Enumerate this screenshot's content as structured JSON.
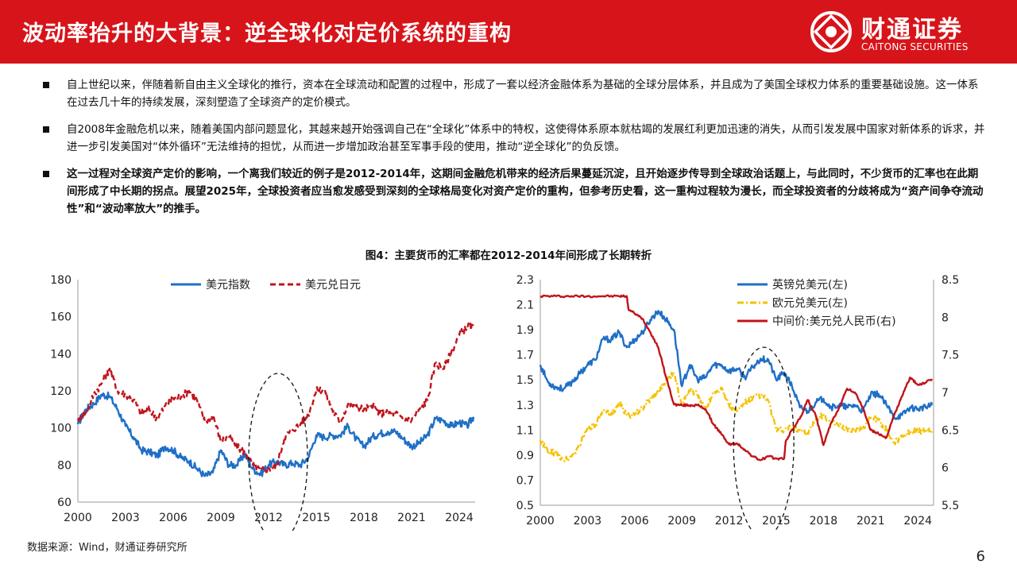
{
  "header": {
    "title": "波动率抬升的大背景：逆全球化对定价系统的重构",
    "logo_cn": "财通证券",
    "logo_en": "CAITONG SECURITIES"
  },
  "bullets": [
    "自上世纪以来，伴随着新自由主义全球化的推行，资本在全球流动和配置的过程中，形成了一套以经济金融体系为基础的全球分层体系，并且成为了美国全球权力体系的重要基础设施。这一体系在过去几十年的持续发展，深刻塑造了全球资产的定价模式。",
    "自2008年金融危机以来，随着美国内部问题显化，其越来越开始强调自己在“全球化”体系中的特权，这使得体系原本就枯竭的发展红利更加迅速的消失，从而引发发展中国家对新体系的诉求，并进一步引发美国对“体外循环”无法维持的担忧，从而进一步增加政治甚至军事手段的使用，推动“逆全球化”的负反馈。",
    "这一过程对全球资产定价的影响，一个离我们较近的例子是2012-2014年，这期间金融危机带来的经济后果蔓延沉淀，且开始逐步传导到全球政治话题上，与此同时，不少货币的汇率也在此期间形成了中长期的拐点。展望2025年，全球投资者应当愈发感受到深刻的全球格局变化对资产定价的重构，但参考历史看，这一重构过程较为漫长，而全球投资者的分歧将成为“资产间争夺流动性”和“波动率放大”的推手。"
  ],
  "figure_title": "图4：主要货币的汇率都在2012-2014年间形成了长期转折",
  "source": "数据来源：Wind，财通证券研究所",
  "page_number": "6",
  "colors": {
    "brand_red": "#d7141a",
    "blue": "#1f6fc6",
    "dark_red": "#c0141b",
    "yellow": "#f5c200"
  },
  "chart_data": [
    {
      "type": "line",
      "xlim": [
        2000,
        2025
      ],
      "x_ticks": [
        "2000",
        "2003",
        "2006",
        "2009",
        "2012",
        "2015",
        "2018",
        "2021",
        "2024"
      ],
      "ylim": [
        60,
        180
      ],
      "y_ticks": [
        "60",
        "80",
        "100",
        "120",
        "140",
        "160",
        "180"
      ],
      "legend_position": "top",
      "annotation": "dashed ellipse around 2011-2014",
      "series": [
        {
          "name": "美元指数",
          "style": "solid",
          "color": "#1f6fc6",
          "x": [
            2000,
            2000.5,
            2001,
            2001.5,
            2002,
            2002.5,
            2003,
            2003.5,
            2004,
            2004.5,
            2005,
            2005.5,
            2006,
            2006.5,
            2007,
            2007.5,
            2008,
            2008.5,
            2009,
            2009.5,
            2010,
            2010.5,
            2011,
            2011.5,
            2012,
            2012.5,
            2013,
            2013.5,
            2014,
            2014.5,
            2015,
            2015.5,
            2016,
            2016.5,
            2017,
            2017.5,
            2018,
            2018.5,
            2019,
            2019.5,
            2020,
            2020.5,
            2021,
            2021.5,
            2022,
            2022.5,
            2023,
            2023.5,
            2024,
            2024.5,
            2024.9
          ],
          "y": [
            102,
            110,
            113,
            118,
            117,
            110,
            101,
            95,
            88,
            87,
            85,
            90,
            88,
            84,
            82,
            78,
            74,
            76,
            88,
            80,
            80,
            86,
            78,
            75,
            80,
            82,
            80,
            81,
            80,
            84,
            96,
            95,
            96,
            96,
            101,
            94,
            90,
            95,
            97,
            98,
            98,
            94,
            90,
            92,
            96,
            105,
            104,
            101,
            103,
            101,
            106
          ]
        },
        {
          "name": "美元兑日元",
          "style": "dashed",
          "color": "#c0141b",
          "x": [
            2000,
            2000.5,
            2001,
            2001.5,
            2002,
            2002.5,
            2003,
            2003.5,
            2004,
            2004.5,
            2005,
            2005.5,
            2006,
            2006.5,
            2007,
            2007.5,
            2008,
            2008.5,
            2009,
            2009.5,
            2010,
            2010.5,
            2011,
            2011.5,
            2012,
            2012.5,
            2013,
            2013.5,
            2014,
            2014.5,
            2015,
            2015.5,
            2016,
            2016.5,
            2017,
            2017.5,
            2018,
            2018.5,
            2019,
            2019.5,
            2020,
            2020.5,
            2021,
            2021.5,
            2022,
            2022.5,
            2023,
            2023.5,
            2024,
            2024.5,
            2024.9
          ],
          "y": [
            105,
            108,
            118,
            124,
            132,
            120,
            118,
            115,
            108,
            110,
            105,
            112,
            116,
            117,
            120,
            115,
            103,
            107,
            93,
            95,
            90,
            87,
            80,
            77,
            78,
            79,
            95,
            99,
            102,
            107,
            120,
            121,
            110,
            103,
            113,
            112,
            110,
            112,
            108,
            108,
            108,
            105,
            104,
            110,
            115,
            135,
            132,
            141,
            150,
            155,
            154
          ]
        }
      ]
    },
    {
      "type": "line",
      "xlim": [
        2000,
        2025
      ],
      "x_ticks": [
        "2000",
        "2003",
        "2006",
        "2009",
        "2012",
        "2015",
        "2018",
        "2021",
        "2024"
      ],
      "ylim_left": [
        0.5,
        2.3
      ],
      "y_ticks_left": [
        "0.5",
        "0.7",
        "0.9",
        "1.1",
        "1.3",
        "1.5",
        "1.7",
        "1.9",
        "2.1",
        "2.3"
      ],
      "ylim_right": [
        5.5,
        8.5
      ],
      "y_ticks_right": [
        "5.5",
        "6",
        "6.5",
        "7",
        "7.5",
        "8",
        "8.5"
      ],
      "legend_position": "top-right",
      "annotation": "dashed ellipse around 2012-2016",
      "series": [
        {
          "name": "英镑兑美元(左)",
          "style": "solid",
          "color": "#1f6fc6",
          "axis": "left",
          "x": [
            2000,
            2000.5,
            2001,
            2001.5,
            2002,
            2002.5,
            2003,
            2003.5,
            2004,
            2004.5,
            2005,
            2005.5,
            2006,
            2006.5,
            2007,
            2007.5,
            2008,
            2008.5,
            2009,
            2009.5,
            2010,
            2010.5,
            2011,
            2011.5,
            2012,
            2012.5,
            2013,
            2013.5,
            2014,
            2014.5,
            2015,
            2015.5,
            2016,
            2016.5,
            2017,
            2017.5,
            2018,
            2018.5,
            2019,
            2019.5,
            2020,
            2020.5,
            2021,
            2021.5,
            2022,
            2022.5,
            2023,
            2023.5,
            2024,
            2024.5,
            2024.9
          ],
          "y": [
            1.62,
            1.48,
            1.44,
            1.43,
            1.48,
            1.55,
            1.62,
            1.66,
            1.83,
            1.82,
            1.88,
            1.76,
            1.82,
            1.88,
            1.98,
            2.05,
            1.98,
            1.9,
            1.45,
            1.62,
            1.5,
            1.52,
            1.62,
            1.62,
            1.57,
            1.59,
            1.52,
            1.6,
            1.67,
            1.66,
            1.5,
            1.56,
            1.45,
            1.28,
            1.25,
            1.32,
            1.35,
            1.28,
            1.3,
            1.28,
            1.3,
            1.25,
            1.38,
            1.39,
            1.3,
            1.2,
            1.22,
            1.28,
            1.27,
            1.28,
            1.3
          ]
        },
        {
          "name": "欧元兑美元(左)",
          "style": "dashdot",
          "color": "#f5c200",
          "axis": "left",
          "x": [
            2000,
            2000.5,
            2001,
            2001.5,
            2002,
            2002.5,
            2003,
            2003.5,
            2004,
            2004.5,
            2005,
            2005.5,
            2006,
            2006.5,
            2007,
            2007.5,
            2008,
            2008.5,
            2009,
            2009.5,
            2010,
            2010.5,
            2011,
            2011.5,
            2012,
            2012.5,
            2013,
            2013.5,
            2014,
            2014.5,
            2015,
            2015.5,
            2016,
            2016.5,
            2017,
            2017.5,
            2018,
            2018.5,
            2019,
            2019.5,
            2020,
            2020.5,
            2021,
            2021.5,
            2022,
            2022.5,
            2023,
            2023.5,
            2024,
            2024.5,
            2024.9
          ],
          "y": [
            1.02,
            0.92,
            0.92,
            0.86,
            0.89,
            0.98,
            1.12,
            1.14,
            1.25,
            1.22,
            1.32,
            1.22,
            1.22,
            1.28,
            1.35,
            1.4,
            1.5,
            1.55,
            1.3,
            1.42,
            1.38,
            1.27,
            1.4,
            1.44,
            1.3,
            1.25,
            1.32,
            1.35,
            1.38,
            1.33,
            1.1,
            1.1,
            1.12,
            1.1,
            1.07,
            1.18,
            1.22,
            1.16,
            1.13,
            1.11,
            1.1,
            1.12,
            1.2,
            1.18,
            1.1,
            1.0,
            1.05,
            1.09,
            1.09,
            1.1,
            1.08
          ]
        },
        {
          "name": "中间价:美元兑人民币(右)",
          "style": "solid",
          "color": "#c0141b",
          "axis": "right",
          "x": [
            2000,
            2001,
            2002,
            2003,
            2004,
            2005,
            2005.5,
            2005.6,
            2006,
            2006.5,
            2007,
            2007.5,
            2008,
            2008.5,
            2009,
            2009.5,
            2010,
            2010.5,
            2011,
            2011.5,
            2012,
            2012.5,
            2013,
            2013.5,
            2014,
            2014.5,
            2015,
            2015.5,
            2015.6,
            2016,
            2016.5,
            2017,
            2017.5,
            2018,
            2018.5,
            2019,
            2019.5,
            2020,
            2020.5,
            2021,
            2021.5,
            2022,
            2022.5,
            2023,
            2023.5,
            2024,
            2024.5,
            2024.9
          ],
          "y": [
            8.28,
            8.28,
            8.28,
            8.28,
            8.28,
            8.28,
            8.28,
            8.11,
            8.05,
            7.98,
            7.8,
            7.6,
            7.2,
            6.84,
            6.83,
            6.83,
            6.83,
            6.78,
            6.58,
            6.45,
            6.31,
            6.32,
            6.24,
            6.15,
            6.1,
            6.15,
            6.12,
            6.12,
            6.35,
            6.5,
            6.65,
            6.9,
            6.7,
            6.3,
            6.6,
            6.8,
            7.05,
            7.0,
            6.8,
            6.5,
            6.45,
            6.4,
            6.7,
            6.95,
            7.2,
            7.1,
            7.13,
            7.18
          ]
        }
      ]
    }
  ]
}
